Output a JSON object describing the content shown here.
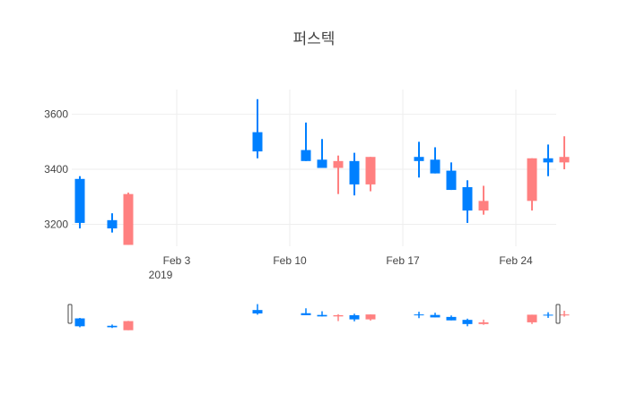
{
  "chart_data": {
    "type": "candlestick",
    "title": "퍼스텍",
    "xlabel": "",
    "ylabel": "",
    "ylim": [
      3120,
      3690
    ],
    "xlim": [
      "2019-01-28",
      "2019-02-28"
    ],
    "grid": true,
    "rangeslider": true,
    "y_ticks": [
      "3200",
      "3400",
      "3600"
    ],
    "y_tick_values": [
      3200,
      3400,
      3600
    ],
    "x_ticks": [
      "Feb 3",
      "Feb 10",
      "Feb 17",
      "Feb 24"
    ],
    "x_tick_dates": [
      "2019-02-03",
      "2019-02-10",
      "2019-02-17",
      "2019-02-24"
    ],
    "x_year_label": "2019",
    "increasing_color": "#0080ff",
    "decreasing_color": "#ff8080",
    "candles": [
      {
        "date": "2019-01-28",
        "open": 3205,
        "high": 3375,
        "low": 3185,
        "close": 3365
      },
      {
        "date": "2019-01-30",
        "open": 3185,
        "high": 3240,
        "low": 3170,
        "close": 3215
      },
      {
        "date": "2019-01-31",
        "open": 3310,
        "high": 3315,
        "low": 3125,
        "close": 3125
      },
      {
        "date": "2019-02-08",
        "open": 3465,
        "high": 3655,
        "low": 3440,
        "close": 3535
      },
      {
        "date": "2019-02-11",
        "open": 3430,
        "high": 3570,
        "low": 3430,
        "close": 3470
      },
      {
        "date": "2019-02-12",
        "open": 3405,
        "high": 3510,
        "low": 3405,
        "close": 3435
      },
      {
        "date": "2019-02-13",
        "open": 3430,
        "high": 3450,
        "low": 3310,
        "close": 3405
      },
      {
        "date": "2019-02-14",
        "open": 3345,
        "high": 3460,
        "low": 3305,
        "close": 3430
      },
      {
        "date": "2019-02-15",
        "open": 3445,
        "high": 3445,
        "low": 3320,
        "close": 3345
      },
      {
        "date": "2019-02-18",
        "open": 3430,
        "high": 3500,
        "low": 3370,
        "close": 3445
      },
      {
        "date": "2019-02-19",
        "open": 3385,
        "high": 3480,
        "low": 3385,
        "close": 3435
      },
      {
        "date": "2019-02-20",
        "open": 3325,
        "high": 3425,
        "low": 3325,
        "close": 3395
      },
      {
        "date": "2019-02-21",
        "open": 3250,
        "high": 3360,
        "low": 3205,
        "close": 3335
      },
      {
        "date": "2019-02-22",
        "open": 3285,
        "high": 3340,
        "low": 3235,
        "close": 3250
      },
      {
        "date": "2019-02-25",
        "open": 3440,
        "high": 3440,
        "low": 3250,
        "close": 3285
      },
      {
        "date": "2019-02-26",
        "open": 3425,
        "high": 3490,
        "low": 3375,
        "close": 3440
      },
      {
        "date": "2019-02-27",
        "open": 3445,
        "high": 3520,
        "low": 3400,
        "close": 3425
      }
    ]
  }
}
